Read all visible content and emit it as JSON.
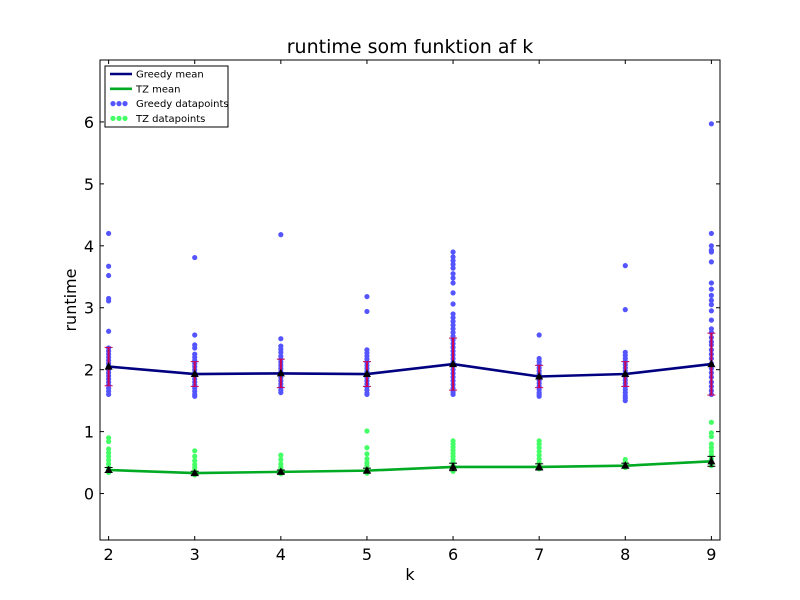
{
  "chart_data": {
    "type": "line",
    "title": "runtime som funktion af k",
    "xlabel": "k",
    "ylabel": "runtime",
    "xlim": [
      1.9,
      9.1
    ],
    "ylim": [
      -0.75,
      7.0
    ],
    "xticks": [
      2,
      3,
      4,
      5,
      6,
      7,
      8,
      9
    ],
    "yticks": [
      0,
      1,
      2,
      3,
      4,
      5,
      6
    ],
    "grid": false,
    "legend_position": "top-left",
    "x": [
      2,
      3,
      4,
      5,
      6,
      7,
      8,
      9
    ],
    "series": [
      {
        "name": "Greedy mean",
        "kind": "line",
        "color": "#000080",
        "values": [
          2.05,
          1.93,
          1.94,
          1.93,
          2.09,
          1.89,
          1.93,
          2.09
        ],
        "error": [
          0.31,
          0.2,
          0.23,
          0.2,
          0.42,
          0.18,
          0.2,
          0.5
        ],
        "error_color": "#cc0055"
      },
      {
        "name": "TZ mean",
        "kind": "line",
        "color": "#00aa22",
        "values": [
          0.38,
          0.33,
          0.35,
          0.37,
          0.43,
          0.43,
          0.45,
          0.52
        ],
        "error": [
          0.04,
          0.03,
          0.03,
          0.04,
          0.06,
          0.05,
          0.04,
          0.08
        ],
        "error_color": "#000000"
      },
      {
        "name": "Greedy datapoints",
        "kind": "scatter",
        "color": "#5555ff",
        "points": [
          [
            2,
            4.2
          ],
          [
            2,
            3.67
          ],
          [
            2,
            3.52
          ],
          [
            2,
            3.15
          ],
          [
            2,
            3.11
          ],
          [
            2,
            2.62
          ],
          [
            2,
            2.35
          ],
          [
            2,
            2.3
          ],
          [
            2,
            2.25
          ],
          [
            2,
            2.2
          ],
          [
            2,
            2.15
          ],
          [
            2,
            2.1
          ],
          [
            2,
            2.05
          ],
          [
            2,
            2.0
          ],
          [
            2,
            1.95
          ],
          [
            2,
            1.9
          ],
          [
            2,
            1.85
          ],
          [
            2,
            1.8
          ],
          [
            2,
            1.75
          ],
          [
            2,
            1.7
          ],
          [
            2,
            1.65
          ],
          [
            2,
            1.6
          ],
          [
            3,
            3.81
          ],
          [
            3,
            2.56
          ],
          [
            3,
            2.4
          ],
          [
            3,
            2.35
          ],
          [
            3,
            2.25
          ],
          [
            3,
            2.2
          ],
          [
            3,
            2.15
          ],
          [
            3,
            2.1
          ],
          [
            3,
            2.05
          ],
          [
            3,
            2.0
          ],
          [
            3,
            1.95
          ],
          [
            3,
            1.9
          ],
          [
            3,
            1.85
          ],
          [
            3,
            1.8
          ],
          [
            3,
            1.75
          ],
          [
            3,
            1.7
          ],
          [
            3,
            1.65
          ],
          [
            3,
            1.6
          ],
          [
            3,
            1.57
          ],
          [
            4,
            4.18
          ],
          [
            4,
            2.5
          ],
          [
            4,
            2.38
          ],
          [
            4,
            2.33
          ],
          [
            4,
            2.28
          ],
          [
            4,
            2.22
          ],
          [
            4,
            2.17
          ],
          [
            4,
            2.12
          ],
          [
            4,
            2.07
          ],
          [
            4,
            2.02
          ],
          [
            4,
            1.97
          ],
          [
            4,
            1.92
          ],
          [
            4,
            1.87
          ],
          [
            4,
            1.82
          ],
          [
            4,
            1.77
          ],
          [
            4,
            1.72
          ],
          [
            4,
            1.67
          ],
          [
            4,
            1.63
          ],
          [
            5,
            3.18
          ],
          [
            5,
            2.94
          ],
          [
            5,
            2.32
          ],
          [
            5,
            2.27
          ],
          [
            5,
            2.22
          ],
          [
            5,
            2.17
          ],
          [
            5,
            2.12
          ],
          [
            5,
            2.07
          ],
          [
            5,
            2.02
          ],
          [
            5,
            1.97
          ],
          [
            5,
            1.92
          ],
          [
            5,
            1.87
          ],
          [
            5,
            1.82
          ],
          [
            5,
            1.77
          ],
          [
            5,
            1.72
          ],
          [
            5,
            1.67
          ],
          [
            5,
            1.62
          ],
          [
            5,
            1.6
          ],
          [
            6,
            3.9
          ],
          [
            6,
            3.82
          ],
          [
            6,
            3.76
          ],
          [
            6,
            3.7
          ],
          [
            6,
            3.64
          ],
          [
            6,
            3.55
          ],
          [
            6,
            3.48
          ],
          [
            6,
            3.4
          ],
          [
            6,
            3.24
          ],
          [
            6,
            3.06
          ],
          [
            6,
            2.9
          ],
          [
            6,
            2.84
          ],
          [
            6,
            2.78
          ],
          [
            6,
            2.72
          ],
          [
            6,
            2.66
          ],
          [
            6,
            2.6
          ],
          [
            6,
            2.54
          ],
          [
            6,
            2.48
          ],
          [
            6,
            2.42
          ],
          [
            6,
            2.36
          ],
          [
            6,
            2.3
          ],
          [
            6,
            2.24
          ],
          [
            6,
            2.18
          ],
          [
            6,
            2.12
          ],
          [
            6,
            2.06
          ],
          [
            6,
            2.0
          ],
          [
            6,
            1.94
          ],
          [
            6,
            1.88
          ],
          [
            6,
            1.82
          ],
          [
            6,
            1.76
          ],
          [
            6,
            1.7
          ],
          [
            6,
            1.64
          ],
          [
            6,
            1.6
          ],
          [
            7,
            2.56
          ],
          [
            7,
            2.18
          ],
          [
            7,
            2.13
          ],
          [
            7,
            2.08
          ],
          [
            7,
            2.03
          ],
          [
            7,
            1.98
          ],
          [
            7,
            1.93
          ],
          [
            7,
            1.88
          ],
          [
            7,
            1.83
          ],
          [
            7,
            1.78
          ],
          [
            7,
            1.73
          ],
          [
            7,
            1.68
          ],
          [
            7,
            1.63
          ],
          [
            7,
            1.6
          ],
          [
            7,
            1.57
          ],
          [
            8,
            3.68
          ],
          [
            8,
            2.97
          ],
          [
            8,
            2.28
          ],
          [
            8,
            2.23
          ],
          [
            8,
            2.18
          ],
          [
            8,
            2.13
          ],
          [
            8,
            2.08
          ],
          [
            8,
            2.03
          ],
          [
            8,
            1.98
          ],
          [
            8,
            1.93
          ],
          [
            8,
            1.88
          ],
          [
            8,
            1.83
          ],
          [
            8,
            1.78
          ],
          [
            8,
            1.73
          ],
          [
            8,
            1.68
          ],
          [
            8,
            1.63
          ],
          [
            8,
            1.58
          ],
          [
            8,
            1.54
          ],
          [
            8,
            1.5
          ],
          [
            9,
            5.97
          ],
          [
            9,
            4.2
          ],
          [
            9,
            4.0
          ],
          [
            9,
            3.93
          ],
          [
            9,
            3.9
          ],
          [
            9,
            3.74
          ],
          [
            9,
            3.4
          ],
          [
            9,
            3.3
          ],
          [
            9,
            3.2
          ],
          [
            9,
            3.12
          ],
          [
            9,
            3.05
          ],
          [
            9,
            2.95
          ],
          [
            9,
            2.8
          ],
          [
            9,
            2.66
          ],
          [
            9,
            2.6
          ],
          [
            9,
            2.52
          ],
          [
            9,
            2.45
          ],
          [
            9,
            2.4
          ],
          [
            9,
            2.32
          ],
          [
            9,
            2.25
          ],
          [
            9,
            2.18
          ],
          [
            9,
            2.1
          ],
          [
            9,
            2.02
          ],
          [
            9,
            1.95
          ],
          [
            9,
            1.88
          ],
          [
            9,
            1.8
          ],
          [
            9,
            1.73
          ],
          [
            9,
            1.66
          ],
          [
            9,
            1.6
          ]
        ]
      },
      {
        "name": "TZ datapoints",
        "kind": "scatter",
        "color": "#44ff66",
        "points": [
          [
            2,
            0.9
          ],
          [
            2,
            0.84
          ],
          [
            2,
            0.72
          ],
          [
            2,
            0.66
          ],
          [
            2,
            0.6
          ],
          [
            2,
            0.54
          ],
          [
            2,
            0.48
          ],
          [
            2,
            0.42
          ],
          [
            2,
            0.38
          ],
          [
            2,
            0.34
          ],
          [
            3,
            0.69
          ],
          [
            3,
            0.6
          ],
          [
            3,
            0.53
          ],
          [
            3,
            0.47
          ],
          [
            3,
            0.42
          ],
          [
            3,
            0.37
          ],
          [
            3,
            0.33
          ],
          [
            3,
            0.3
          ],
          [
            4,
            0.62
          ],
          [
            4,
            0.55
          ],
          [
            4,
            0.48
          ],
          [
            4,
            0.43
          ],
          [
            4,
            0.39
          ],
          [
            4,
            0.35
          ],
          [
            4,
            0.32
          ],
          [
            5,
            1.01
          ],
          [
            5,
            0.74
          ],
          [
            5,
            0.64
          ],
          [
            5,
            0.56
          ],
          [
            5,
            0.5
          ],
          [
            5,
            0.45
          ],
          [
            5,
            0.4
          ],
          [
            5,
            0.36
          ],
          [
            5,
            0.33
          ],
          [
            6,
            0.85
          ],
          [
            6,
            0.8
          ],
          [
            6,
            0.75
          ],
          [
            6,
            0.7
          ],
          [
            6,
            0.65
          ],
          [
            6,
            0.6
          ],
          [
            6,
            0.55
          ],
          [
            6,
            0.5
          ],
          [
            6,
            0.45
          ],
          [
            6,
            0.4
          ],
          [
            6,
            0.36
          ],
          [
            7,
            0.85
          ],
          [
            7,
            0.8
          ],
          [
            7,
            0.74
          ],
          [
            7,
            0.68
          ],
          [
            7,
            0.62
          ],
          [
            7,
            0.56
          ],
          [
            7,
            0.5
          ],
          [
            7,
            0.45
          ],
          [
            7,
            0.4
          ],
          [
            8,
            0.55
          ],
          [
            8,
            0.5
          ],
          [
            8,
            0.46
          ],
          [
            8,
            0.42
          ],
          [
            9,
            1.15
          ],
          [
            9,
            0.98
          ],
          [
            9,
            0.92
          ],
          [
            9,
            0.8
          ],
          [
            9,
            0.74
          ],
          [
            9,
            0.68
          ],
          [
            9,
            0.62
          ],
          [
            9,
            0.56
          ],
          [
            9,
            0.5
          ],
          [
            9,
            0.45
          ]
        ]
      }
    ]
  }
}
